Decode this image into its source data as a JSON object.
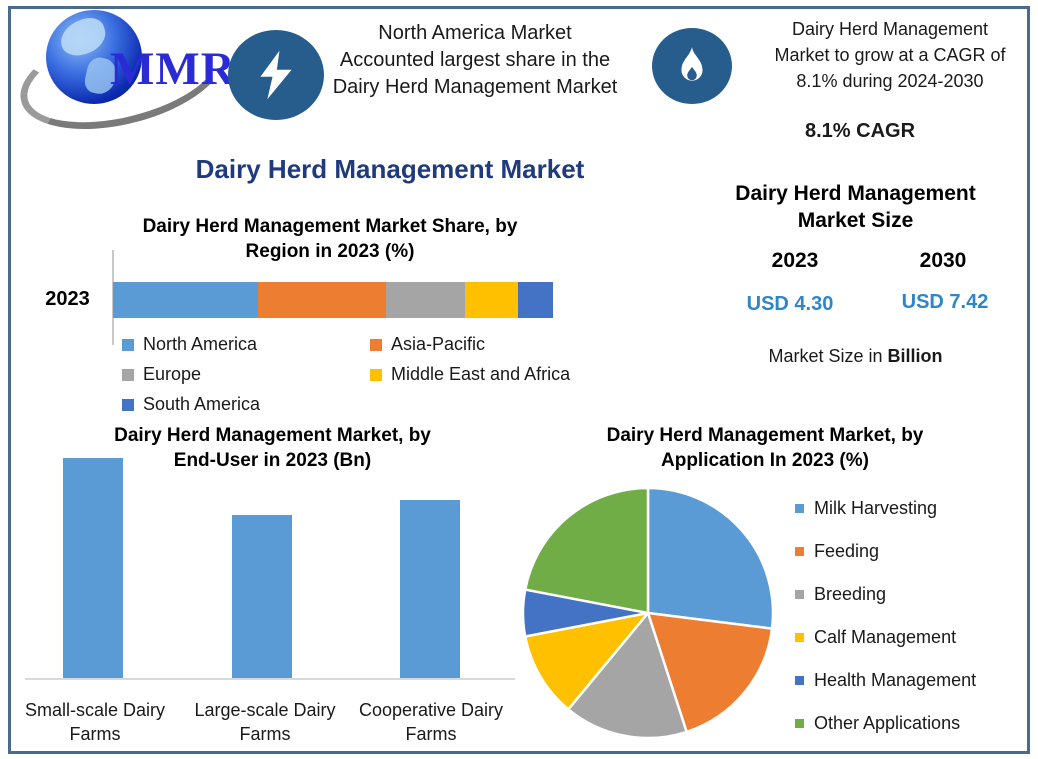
{
  "logo": {
    "text": "MMR"
  },
  "badges": [
    {
      "icon": "lightning-bolt-icon",
      "lines": [
        "North America Market",
        "Accounted largest share in the",
        "Dairy Herd Management Market"
      ]
    },
    {
      "icon": "flame-icon",
      "lines": [
        "Dairy Herd Management",
        "Market to grow at a CAGR of",
        "8.1% during 2024-2030"
      ],
      "cagr_label": "8.1% CAGR"
    }
  ],
  "main_title": "Dairy Herd Management Market",
  "market_size": {
    "title_line1": "Dairy Herd Management",
    "title_line2": "Market Size",
    "year_left": "2023",
    "year_right": "2030",
    "value_left": "USD 4.30",
    "value_right": "USD 7.42",
    "footnote_prefix": "Market Size in ",
    "footnote_bold": "Billion"
  },
  "colors": {
    "frame": "#4b6b8c",
    "navy_title": "#1f3a7d",
    "badge_circle": "#275d8d",
    "usd_blue": "#2e86c6"
  },
  "chart_data": [
    {
      "type": "bar",
      "subtype": "stacked-horizontal",
      "title": "Dairy Herd Management Market Share, by Region in 2023 (%)",
      "title_line1": "Dairy Herd Management Market Share, by",
      "title_line2": "Region in 2023 (%)",
      "categories": [
        "2023"
      ],
      "series": [
        {
          "name": "North America",
          "value": 33,
          "color": "#5B9BD5"
        },
        {
          "name": "Asia-Pacific",
          "value": 29,
          "color": "#ED7D31"
        },
        {
          "name": "Europe",
          "value": 18,
          "color": "#A5A5A5"
        },
        {
          "name": "Middle East and Africa",
          "value": 12,
          "color": "#FFC000"
        },
        {
          "name": "South America",
          "value": 8,
          "color": "#4472C4"
        }
      ],
      "xlim": [
        0,
        100
      ],
      "legend_position": "below",
      "grid": false
    },
    {
      "type": "bar",
      "title": "Dairy Herd Management Market, by End-User in 2023 (Bn)",
      "title_line1": "Dairy Herd Management Market, by",
      "title_line2": "End-User in 2023 (Bn)",
      "categories": [
        "Small-scale Dairy Farms",
        "Large-scale Dairy Farms",
        "Cooperative Dairy Farms"
      ],
      "values_relative_to_max": [
        1.0,
        0.74,
        0.81
      ],
      "axis_values_shown": false,
      "bar_color": "#5B9BD5",
      "grid": false
    },
    {
      "type": "pie",
      "title": "Dairy Herd Management Market, by Application In 2023 (%)",
      "title_line1": "Dairy Herd Management Market, by",
      "title_line2": "Application In 2023 (%)",
      "labels": [
        "Milk Harvesting",
        "Feeding",
        "Breeding",
        "Calf Management",
        "Health Management",
        "Other Applications"
      ],
      "values": [
        27,
        18,
        16,
        11,
        6,
        22
      ],
      "colors": [
        "#5B9BD5",
        "#ED7D31",
        "#A5A5A5",
        "#FFC000",
        "#4472C4",
        "#70AD47"
      ],
      "legend_position": "right",
      "start_angle_deg": 0,
      "direction": "clockwise"
    }
  ]
}
